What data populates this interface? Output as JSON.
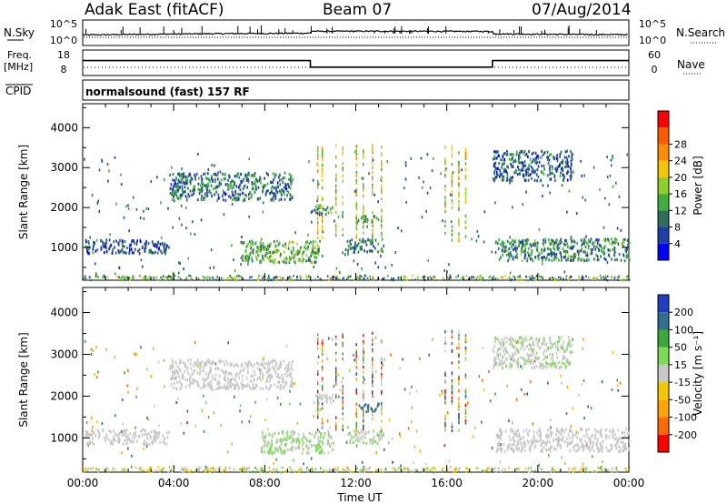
{
  "header": {
    "radar": "Adak East (fitACF)",
    "beam": "Beam 07",
    "date": "07/Aug/2014"
  },
  "panels": {
    "nsky_label": "N.Sky",
    "nsky_ticks": [
      "10^5",
      "10^0"
    ],
    "nsearch_label": "N.Search",
    "nsearch_ticks": [
      "10^5",
      "10^0"
    ],
    "freq_label": "Freq.",
    "freq_unit": "[MHz]",
    "freq_ticks": [
      "18",
      "8"
    ],
    "nave_label": "Nave",
    "nave_ticks": [
      "60",
      "0"
    ],
    "cpid_label": "CPID",
    "cpid_value": "normalsound (fast) 157 RF"
  },
  "x_axis": {
    "label": "Time UT",
    "ticks": [
      "00:00",
      "04:00",
      "08:00",
      "12:00",
      "16:00",
      "20:00",
      "00:00"
    ]
  },
  "colors": {
    "power": [
      "#0000ff",
      "#1f3fa8",
      "#2e6e5a",
      "#3fae3f",
      "#8ed02a",
      "#f2c700",
      "#ff8c00",
      "#ff5a00",
      "#ff0000"
    ],
    "velocity": [
      "#ff0000",
      "#ff6a00",
      "#ffa500",
      "#f2c700",
      "#c8c8c8",
      "#7ed957",
      "#3aa83a",
      "#2f6f8f",
      "#1f3fbf"
    ]
  },
  "chart_data": [
    {
      "type": "line",
      "panel": "nsky",
      "ylabel": "N.Sky",
      "xlim": [
        0,
        24
      ],
      "yscale": "log",
      "ylim": [
        1,
        100000
      ],
      "x": [
        0,
        2,
        4,
        6,
        8,
        10,
        10.05,
        12,
        14,
        16,
        18,
        18.05,
        20,
        22,
        24
      ],
      "y": [
        100,
        130,
        160,
        200,
        220,
        260,
        700,
        720,
        700,
        680,
        650,
        180,
        150,
        130,
        120
      ]
    },
    {
      "type": "line",
      "panel": "freq",
      "ylabel": "Freq. [MHz]",
      "xlim": [
        0,
        24
      ],
      "ylim": [
        8,
        18
      ],
      "x": [
        0,
        10,
        10.01,
        18,
        18.01,
        24
      ],
      "y": [
        14,
        14,
        11,
        11,
        14,
        14
      ]
    },
    {
      "type": "heatmap",
      "panel": "power",
      "title": "",
      "xlabel": "Time UT",
      "ylabel": "Slant Range [km]",
      "xlim": [
        0,
        24
      ],
      "ylim": [
        180,
        4600
      ],
      "yticks": [
        1000,
        2000,
        3000,
        4000
      ],
      "colorbar": {
        "label": "Power [dB]",
        "ticks": [
          "4",
          "8",
          "12",
          "16",
          "20",
          "24",
          "28"
        ],
        "range": [
          0,
          30
        ]
      },
      "clusters": [
        {
          "t0": 0.1,
          "t1": 3.8,
          "r0": 880,
          "r1": 1230,
          "level": 6
        },
        {
          "t0": 3.8,
          "t1": 9.2,
          "r0": 2200,
          "r1": 2900,
          "level": 8
        },
        {
          "t0": 6.9,
          "t1": 10.4,
          "r0": 650,
          "r1": 1200,
          "level": 12
        },
        {
          "t0": 10.0,
          "t1": 11.0,
          "r0": 1850,
          "r1": 2080,
          "level": 10
        },
        {
          "t0": 11.6,
          "t1": 13.2,
          "r0": 900,
          "r1": 1250,
          "level": 9
        },
        {
          "t0": 12.0,
          "t1": 13.0,
          "r0": 1650,
          "r1": 1850,
          "level": 11
        },
        {
          "t0": 18.1,
          "t1": 24.0,
          "r0": 700,
          "r1": 1250,
          "level": 9
        },
        {
          "t0": 18.0,
          "t1": 21.5,
          "r0": 2700,
          "r1": 3450,
          "level": 7
        }
      ]
    },
    {
      "type": "heatmap",
      "panel": "velocity",
      "title": "",
      "xlabel": "Time UT",
      "ylabel": "Slant Range [km]",
      "xlim": [
        0,
        24
      ],
      "ylim": [
        180,
        4600
      ],
      "yticks": [
        1000,
        2000,
        3000,
        4000
      ],
      "colorbar": {
        "label": "Velocity [m s⁻¹]",
        "ticks": [
          "200",
          "100",
          "50",
          "15",
          "-15",
          "-50",
          "-100",
          "-200"
        ],
        "range": [
          -250,
          250
        ]
      },
      "clusters": [
        {
          "t0": 0.1,
          "t1": 3.8,
          "r0": 880,
          "r1": 1230,
          "level": 0
        },
        {
          "t0": 3.8,
          "t1": 9.2,
          "r0": 2200,
          "r1": 2900,
          "level": 0
        },
        {
          "t0": 7.8,
          "t1": 11.0,
          "r0": 650,
          "r1": 1200,
          "level": 30
        },
        {
          "t0": 10.0,
          "t1": 11.0,
          "r0": 1850,
          "r1": 2080,
          "level": 0
        },
        {
          "t0": 11.6,
          "t1": 13.2,
          "r0": 900,
          "r1": 1250,
          "level": 25
        },
        {
          "t0": 12.0,
          "t1": 13.0,
          "r0": 1650,
          "r1": 1850,
          "level": 170
        },
        {
          "t0": 18.1,
          "t1": 24.0,
          "r0": 700,
          "r1": 1250,
          "level": -5
        },
        {
          "t0": 18.0,
          "t1": 21.5,
          "r0": 2700,
          "r1": 3450,
          "level": 20
        }
      ]
    }
  ]
}
